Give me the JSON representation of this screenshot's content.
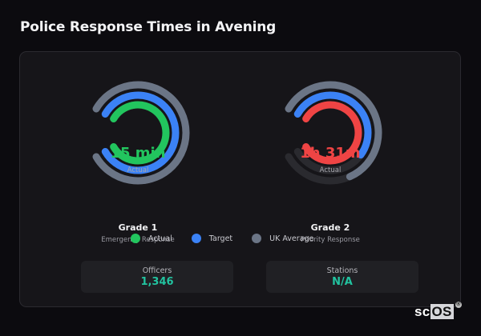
{
  "page": {
    "title": "Police Response Times in Avening"
  },
  "gauges": [
    {
      "name": "Grade 1",
      "description": "Emergency Response",
      "value_text": "15 min",
      "value_label": "Actual",
      "value_color": "#22c55e",
      "rings": [
        {
          "series": "UK Average",
          "color": "#6b7586",
          "fraction": 1.0
        },
        {
          "series": "Target",
          "color": "#3b82f6",
          "fraction": 1.0
        },
        {
          "series": "Actual",
          "color": "#22c55e",
          "fraction": 1.0
        }
      ]
    },
    {
      "name": "Grade 2",
      "description": "Priority Response",
      "value_text": "1h 31m",
      "value_label": "Actual",
      "value_color": "#ef4444",
      "rings": [
        {
          "series": "UK Average",
          "color": "#6b7586",
          "fraction": 0.72
        },
        {
          "series": "Target",
          "color": "#3b82f6",
          "fraction": 0.62
        },
        {
          "series": "Actual",
          "color": "#ef4444",
          "fraction": 1.0
        }
      ]
    }
  ],
  "legend": [
    {
      "label": "Actual",
      "color": "#22c55e"
    },
    {
      "label": "Target",
      "color": "#3b82f6"
    },
    {
      "label": "UK Average",
      "color": "#6b7586"
    }
  ],
  "stats": [
    {
      "label": "Officers",
      "value": "1,346"
    },
    {
      "label": "Stations",
      "value": "N/A"
    }
  ],
  "brand": {
    "prefix": "sc",
    "suffix": "OS",
    "mark": "®"
  },
  "colors": {
    "background": "#0c0b0f",
    "card": "#161519",
    "track": "#2a2a2f",
    "stat_value": "#22c3a0"
  }
}
